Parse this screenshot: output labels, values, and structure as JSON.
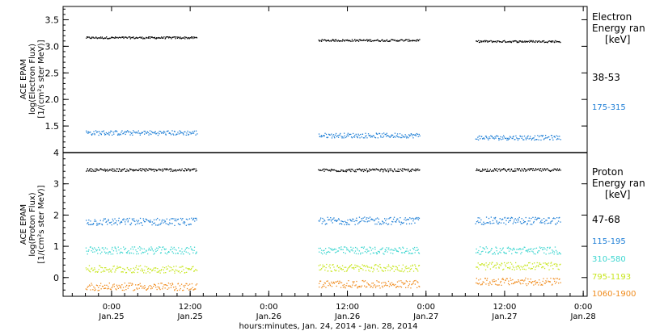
{
  "chart_data": [
    {
      "type": "scatter",
      "panel": "electron",
      "ylabel": [
        "ACE EPAM",
        "log(Electron Flux)",
        "[1/(cm²s ster MeV)]"
      ],
      "ylim": [
        1.0,
        3.75
      ],
      "yticks": [
        1.5,
        2.0,
        2.5,
        3.0,
        3.5
      ],
      "ytick_labels": [
        "1.5",
        "2.0",
        "2.5",
        "3.0",
        "3.5"
      ],
      "legend_title": [
        "Electron",
        "Energy ran",
        "[keV]"
      ],
      "series": [
        {
          "name": "38-53",
          "color": "#000000",
          "values": [
            3.17,
            3.12,
            3.1
          ]
        },
        {
          "name": "175-315",
          "color": "#1f7fd6",
          "values": [
            1.38,
            1.33,
            1.29
          ]
        }
      ]
    },
    {
      "type": "scatter",
      "panel": "proton",
      "ylabel": [
        "ACE EPAM",
        "log(Proton Flux)",
        "[1/(cm²s ster MeV)]"
      ],
      "ylim": [
        -0.6,
        4.0
      ],
      "yticks": [
        0,
        1,
        2,
        3,
        4
      ],
      "ytick_labels": [
        "0",
        "1",
        "2",
        "3",
        "4"
      ],
      "legend_title": [
        "Proton",
        "Energy ran",
        "[keV]"
      ],
      "series": [
        {
          "name": "47-68",
          "color": "#000000",
          "values": [
            3.46,
            3.45,
            3.46
          ]
        },
        {
          "name": "115-195",
          "color": "#1f7fd6",
          "values": [
            1.8,
            1.83,
            1.83
          ]
        },
        {
          "name": "310-580",
          "color": "#3dd6d0",
          "values": [
            0.88,
            0.88,
            0.88
          ]
        },
        {
          "name": "795-1193",
          "color": "#c8e61f",
          "values": [
            0.28,
            0.32,
            0.38
          ]
        },
        {
          "name": "1060-1900",
          "color": "#f08c1e",
          "values": [
            -0.28,
            -0.2,
            -0.12
          ]
        }
      ]
    }
  ],
  "x_axis": {
    "ticks": [
      {
        "time": "0:00",
        "date": "Jan.25"
      },
      {
        "time": "12:00",
        "date": "Jan.25"
      },
      {
        "time": "0:00",
        "date": "Jan.26"
      },
      {
        "time": "12:00",
        "date": "Jan.26"
      },
      {
        "time": "0:00",
        "date": "Jan.27"
      },
      {
        "time": "12:00",
        "date": "Jan.27"
      },
      {
        "time": "0:00",
        "date": "Jan.28"
      }
    ],
    "label": "hours:minutes, Jan. 24, 2014 - Jan. 28, 2014"
  },
  "data_windows": [
    {
      "start": "Jan.24 20:00",
      "end": "Jan.25 13:00"
    },
    {
      "start": "Jan.26 07:30",
      "end": "Jan.26 23:00"
    },
    {
      "start": "Jan.27 07:30",
      "end": "Jan.27 20:30"
    }
  ]
}
